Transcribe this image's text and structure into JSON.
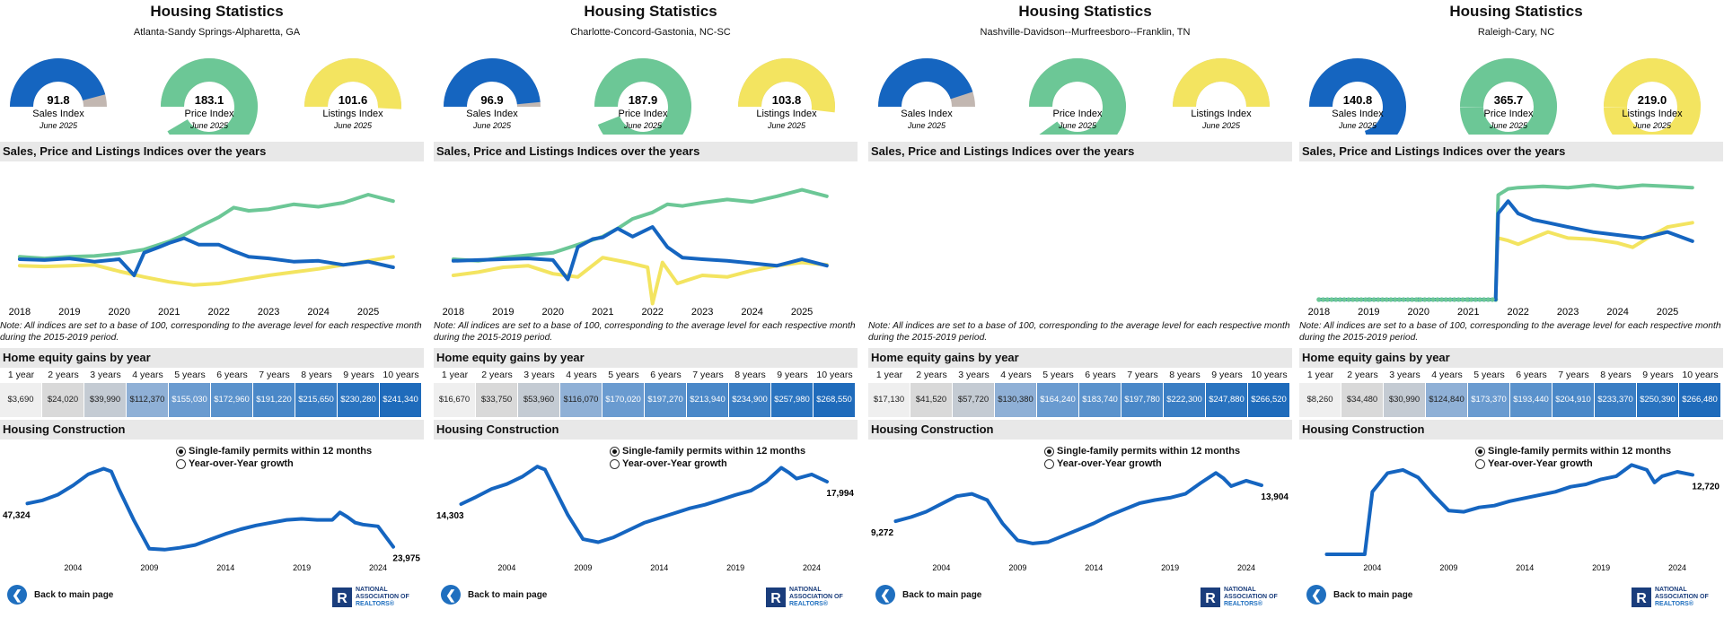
{
  "title": "Housing Statistics",
  "section_indices": "Sales, Price and Listings Indices over the years",
  "section_equity": "Home equity gains by year",
  "section_construction": "Housing Construction",
  "note": "Note: All indices are set to a base of 100, corresponding to the average level for each respective month during the 2015-2019 period.",
  "gauge_labels": [
    "Sales Index",
    "Price Index",
    "Listings Index"
  ],
  "gauge_date": "June 2025",
  "equity_years": [
    "1 year",
    "2 years",
    "3 years",
    "4 years",
    "5 years",
    "6 years",
    "7 years",
    "8 years",
    "9 years",
    "10 years"
  ],
  "radio_permits": "Single-family permits within 12 months",
  "radio_growth": "Year-over-Year growth",
  "back_label": "Back to main page",
  "logo_lines": [
    "NATIONAL",
    "ASSOCIATION OF",
    "REALTORS®"
  ],
  "logo_letter": "R",
  "colors": {
    "sales": "#1565c0",
    "price": "#6cc796",
    "listings": "#f3e460",
    "gauge_bg": "#c2b7b1",
    "header_bg": "#e8e8e8"
  },
  "chart_data": [
    {
      "type": "panel",
      "metro": "Atlanta-Sandy Springs-Alpharetta, GA",
      "gauges": [
        {
          "label": "Sales Index",
          "value": "91.8",
          "v": 91.8
        },
        {
          "label": "Price Index",
          "value": "183.1",
          "v": 183.1
        },
        {
          "label": "Listings Index",
          "value": "101.6",
          "v": 101.6
        }
      ],
      "indices": {
        "type": "line",
        "x_range": [
          2017.75,
          2025.9
        ],
        "ylim": [
          50,
          210
        ],
        "x_ticks": [
          "2018",
          "2019",
          "2020",
          "2021",
          "2022",
          "2023",
          "2024",
          "2025"
        ],
        "series": [
          {
            "name": "Sales Index",
            "x": [
              2018.0,
              2018.5,
              2019.0,
              2019.5,
              2020.0,
              2020.3,
              2020.5,
              2020.8,
              2021.0,
              2021.3,
              2021.6,
              2022.0,
              2022.3,
              2022.6,
              2023.0,
              2023.5,
              2024.0,
              2024.5,
              2025.0,
              2025.5
            ],
            "y": [
              100,
              99,
              101,
              97,
              100,
              80,
              108,
              115,
              120,
              126,
              118,
              118,
              110,
              103,
              101,
              97,
              98,
              93,
              97,
              90
            ]
          },
          {
            "name": "Price Index",
            "x": [
              2018.0,
              2018.5,
              2019.0,
              2019.5,
              2020.0,
              2020.5,
              2021.0,
              2021.3,
              2021.6,
              2022.0,
              2022.3,
              2022.6,
              2023.0,
              2023.5,
              2024.0,
              2024.5,
              2025.0,
              2025.5
            ],
            "y": [
              103,
              101,
              103,
              104,
              107,
              112,
              122,
              130,
              140,
              152,
              164,
              160,
              162,
              168,
              165,
              170,
              180,
              172
            ]
          },
          {
            "name": "Listings Index",
            "x": [
              2018.0,
              2018.5,
              2019.0,
              2019.5,
              2020.0,
              2020.5,
              2021.0,
              2021.5,
              2022.0,
              2022.5,
              2023.0,
              2023.5,
              2024.0,
              2024.5,
              2025.0,
              2025.5
            ],
            "y": [
              92,
              91,
              92,
              93,
              85,
              78,
              72,
              68,
              70,
              75,
              80,
              84,
              88,
              93,
              98,
              103
            ]
          }
        ]
      },
      "equity": [
        "$3,690",
        "$24,020",
        "$39,990",
        "$112,370",
        "$155,030",
        "$172,960",
        "$191,220",
        "$215,650",
        "$230,280",
        "$241,340"
      ],
      "construction": {
        "type": "line",
        "series_name": "Single-family permits within 12 months",
        "x_range": [
          2000.5,
          2026
        ],
        "ylim": [
          20000,
          72000
        ],
        "x_ticks": [
          "2004",
          "2009",
          "2014",
          "2019",
          "2024"
        ],
        "x": [
          2001,
          2002,
          2003,
          2004,
          2005,
          2006,
          2006.5,
          2007,
          2008,
          2009,
          2010,
          2011,
          2012,
          2013,
          2014,
          2015,
          2016,
          2017,
          2018,
          2019,
          2020,
          2021,
          2021.5,
          2022,
          2022.5,
          2023,
          2024,
          2025
        ],
        "y": [
          47324,
          49000,
          52000,
          57000,
          63000,
          66000,
          64500,
          55000,
          38000,
          23000,
          22500,
          23500,
          25000,
          28000,
          31000,
          33500,
          35500,
          37000,
          38500,
          39000,
          38500,
          38500,
          42500,
          40000,
          37000,
          36000,
          35000,
          23975
        ],
        "start_label": "47,324",
        "end_label": "23,975"
      }
    },
    {
      "type": "panel",
      "metro": "Charlotte-Concord-Gastonia, NC-SC",
      "gauges": [
        {
          "label": "Sales Index",
          "value": "96.9",
          "v": 96.9
        },
        {
          "label": "Price Index",
          "value": "187.9",
          "v": 187.9
        },
        {
          "label": "Listings Index",
          "value": "103.8",
          "v": 103.8
        }
      ],
      "indices": {
        "type": "line",
        "x_range": [
          2017.75,
          2025.9
        ],
        "ylim": [
          50,
          210
        ],
        "x_ticks": [
          "2018",
          "2019",
          "2020",
          "2021",
          "2022",
          "2023",
          "2024",
          "2025"
        ],
        "series": [
          {
            "name": "Sales Index",
            "x": [
              2018.0,
              2018.5,
              2019.0,
              2019.5,
              2020.0,
              2020.3,
              2020.5,
              2020.8,
              2021.0,
              2021.3,
              2021.6,
              2022.0,
              2022.3,
              2022.6,
              2023.0,
              2023.5,
              2024.0,
              2024.5,
              2025.0,
              2025.5
            ],
            "y": [
              98,
              99,
              100,
              101,
              99,
              75,
              115,
              125,
              127,
              138,
              128,
              140,
              115,
              102,
              100,
              98,
              95,
              92,
              100,
              92
            ]
          },
          {
            "name": "Price Index",
            "x": [
              2018.0,
              2018.5,
              2019.0,
              2019.5,
              2020.0,
              2020.5,
              2021.0,
              2021.3,
              2021.6,
              2022.0,
              2022.3,
              2022.6,
              2023.0,
              2023.5,
              2024.0,
              2024.5,
              2025.0,
              2025.5
            ],
            "y": [
              100,
              98,
              102,
              105,
              108,
              118,
              128,
              138,
              150,
              158,
              168,
              166,
              170,
              174,
              171,
              178,
              186,
              178
            ]
          },
          {
            "name": "Listings Index",
            "x": [
              2018.0,
              2018.5,
              2019.0,
              2019.5,
              2020.0,
              2020.5,
              2021.0,
              2021.5,
              2021.9,
              2022.0,
              2022.2,
              2022.5,
              2023.0,
              2023.5,
              2024.0,
              2024.5,
              2025.0,
              2025.5
            ],
            "y": [
              80,
              84,
              90,
              92,
              82,
              78,
              102,
              96,
              90,
              45,
              96,
              70,
              80,
              78,
              86,
              92,
              96,
              93
            ]
          }
        ]
      },
      "equity": [
        "$16,670",
        "$33,750",
        "$53,960",
        "$116,070",
        "$170,020",
        "$197,270",
        "$213,940",
        "$234,900",
        "$257,980",
        "$268,550"
      ],
      "construction": {
        "type": "line",
        "series_name": "Single-family permits within 12 months",
        "x_range": [
          2000.5,
          2026
        ],
        "ylim": [
          6000,
          22000
        ],
        "x_ticks": [
          "2004",
          "2009",
          "2014",
          "2019",
          "2024"
        ],
        "x": [
          2001,
          2002,
          2003,
          2004,
          2005,
          2006,
          2006.5,
          2007,
          2008,
          2009,
          2010,
          2011,
          2012,
          2013,
          2014,
          2015,
          2016,
          2017,
          2018,
          2019,
          2020,
          2021,
          2022,
          2022.5,
          2023,
          2024,
          2025
        ],
        "y": [
          14303,
          15500,
          16800,
          17600,
          18800,
          20500,
          20000,
          17500,
          12500,
          8500,
          8000,
          8800,
          10000,
          11200,
          12000,
          12800,
          13600,
          14200,
          15000,
          15800,
          16500,
          18000,
          20300,
          19500,
          18500,
          19200,
          17994
        ],
        "start_label": "14,303",
        "end_label": "17,994"
      }
    },
    {
      "type": "panel",
      "metro": "Nashville-Davidson--Murfreesboro--Franklin, TN",
      "gauges": [
        {
          "label": "Sales Index",
          "value": "",
          "v": 90
        },
        {
          "label": "Price Index",
          "value": "",
          "v": 180
        },
        {
          "label": "Listings Index",
          "value": "",
          "v": 100
        }
      ],
      "indices": {
        "type": "line",
        "x_range": [
          2017.75,
          2025.9
        ],
        "ylim": [
          50,
          210
        ],
        "x_ticks": [],
        "series": []
      },
      "equity": [
        "$17,130",
        "$41,520",
        "$57,720",
        "$130,380",
        "$164,240",
        "$183,740",
        "$197,780",
        "$222,300",
        "$247,880",
        "$266,520"
      ],
      "construction": {
        "type": "line",
        "series_name": "Single-family permits within 12 months",
        "x_range": [
          2000.5,
          2026
        ],
        "ylim": [
          5000,
          17500
        ],
        "x_ticks": [
          "2004",
          "2009",
          "2014",
          "2019",
          "2024"
        ],
        "x": [
          2001,
          2002,
          2003,
          2004,
          2005,
          2006,
          2007,
          2008,
          2009,
          2010,
          2011,
          2012,
          2013,
          2014,
          2015,
          2016,
          2017,
          2018,
          2019,
          2020,
          2021,
          2022,
          2022.5,
          2023,
          2024,
          2025
        ],
        "y": [
          9272,
          9800,
          10500,
          11500,
          12500,
          12800,
          12000,
          9000,
          6800,
          6400,
          6600,
          7400,
          8200,
          9000,
          10000,
          10800,
          11600,
          12000,
          12300,
          12800,
          14200,
          15500,
          14800,
          13800,
          14500,
          13904
        ],
        "start_label": "9,272",
        "end_label": "13,904"
      }
    },
    {
      "type": "panel",
      "metro": "Raleigh-Cary, NC",
      "gauges": [
        {
          "label": "Sales Index",
          "value": "140.8",
          "v": 140.8
        },
        {
          "label": "Price Index",
          "value": "365.7",
          "v": 365.7
        },
        {
          "label": "Listings Index",
          "value": "219.0",
          "v": 219.0
        }
      ],
      "indices": {
        "type": "line",
        "x_range": [
          2017.75,
          2025.9
        ],
        "ylim": [
          0,
          210
        ],
        "x_ticks": [
          "2018",
          "2019",
          "2020",
          "2021",
          "2022",
          "2023",
          "2024",
          "2025"
        ],
        "series": [
          {
            "name": "Sales Index",
            "x": [
              2018.0,
              2019.0,
              2020.0,
              2021.0,
              2021.55,
              2021.6,
              2021.8,
              2022.0,
              2022.3,
              2022.6,
              2023.0,
              2023.5,
              2024.0,
              2024.5,
              2025.0,
              2025.5
            ],
            "y": [
              0,
              0,
              0,
              0,
              0,
              140,
              160,
              140,
              130,
              125,
              118,
              110,
              105,
              100,
              110,
              95
            ]
          },
          {
            "name": "Price Index",
            "x": [
              2018.0,
              2019.0,
              2020.0,
              2021.0,
              2021.55,
              2021.6,
              2021.8,
              2022.0,
              2022.5,
              2023.0,
              2023.5,
              2024.0,
              2024.5,
              2025.0,
              2025.5
            ],
            "y": [
              0,
              0,
              0,
              0,
              0,
              170,
              180,
              182,
              184,
              182,
              186,
              182,
              186,
              184,
              182
            ]
          },
          {
            "name": "Listings Index",
            "x": [
              2021.6,
              2021.8,
              2022.0,
              2022.3,
              2022.6,
              2023.0,
              2023.5,
              2024.0,
              2024.3,
              2024.6,
              2025.0,
              2025.5
            ],
            "y": [
              100,
              96,
              90,
              100,
              110,
              100,
              98,
              92,
              85,
              100,
              118,
              125
            ]
          }
        ]
      },
      "equity": [
        "$8,260",
        "$34,480",
        "$30,990",
        "$124,840",
        "$173,370",
        "$193,440",
        "$204,910",
        "$233,370",
        "$250,390",
        "$266,480"
      ],
      "construction": {
        "type": "line",
        "series_name": "Single-family permits within 12 months",
        "x_range": [
          2000.5,
          2026
        ],
        "ylim": [
          0,
          15500
        ],
        "x_ticks": [
          "2004",
          "2009",
          "2014",
          "2019",
          "2024"
        ],
        "x": [
          2001,
          2002,
          2003,
          2003.5,
          2004,
          2005,
          2006,
          2007,
          2008,
          2009,
          2010,
          2011,
          2012,
          2013,
          2014,
          2015,
          2016,
          2017,
          2018,
          2019,
          2020,
          2021,
          2022,
          2022.5,
          2023,
          2024,
          2025
        ],
        "y": [
          0,
          0,
          0,
          0,
          10000,
          13000,
          13500,
          12300,
          9500,
          7000,
          6800,
          7500,
          7800,
          8500,
          9000,
          9500,
          10000,
          10800,
          11200,
          12000,
          12500,
          14300,
          13500,
          11500,
          12500,
          13200,
          12720
        ],
        "start_label": "",
        "end_label": "12,720"
      }
    }
  ]
}
